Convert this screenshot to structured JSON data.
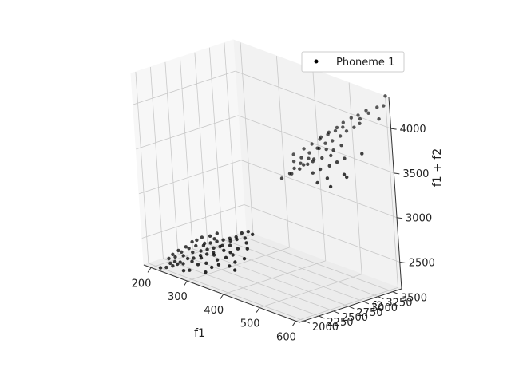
{
  "chart_data": {
    "type": "scatter3d",
    "title": "",
    "legend": {
      "placement": "top-right",
      "entries": [
        "Phoneme 1"
      ]
    },
    "axes": {
      "x": {
        "label": "f1",
        "lim": [
          180,
          610
        ],
        "ticks": [
          200,
          300,
          400,
          500,
          600
        ]
      },
      "y": {
        "label": "f2",
        "lim": [
          1920,
          3650
        ],
        "ticks": [
          2000,
          2250,
          2500,
          2750,
          3000,
          3250,
          3500
        ]
      },
      "z": {
        "label": "f1 + f2",
        "lim": [
          2200,
          4350
        ],
        "ticks": [
          2500,
          3000,
          3500,
          4000
        ]
      }
    },
    "grid": true,
    "series": [
      {
        "name": "Phoneme 1",
        "color": "#000000",
        "points": [
          [
            230,
            2000,
            2230
          ],
          [
            245,
            2020,
            2265
          ],
          [
            260,
            2060,
            2320
          ],
          [
            275,
            2100,
            2375
          ],
          [
            290,
            2110,
            2400
          ],
          [
            305,
            2140,
            2445
          ],
          [
            320,
            2160,
            2480
          ],
          [
            335,
            2180,
            2515
          ],
          [
            250,
            2150,
            2400
          ],
          [
            265,
            2190,
            2455
          ],
          [
            280,
            2220,
            2500
          ],
          [
            300,
            2230,
            2530
          ],
          [
            315,
            2260,
            2575
          ],
          [
            330,
            2280,
            2610
          ],
          [
            345,
            2300,
            2645
          ],
          [
            360,
            2320,
            2680
          ],
          [
            375,
            2340,
            2715
          ],
          [
            385,
            2380,
            2765
          ],
          [
            400,
            2400,
            2800
          ],
          [
            360,
            2210,
            2570
          ],
          [
            340,
            2160,
            2500
          ],
          [
            310,
            2120,
            2430
          ],
          [
            290,
            2080,
            2370
          ],
          [
            270,
            2050,
            2320
          ],
          [
            255,
            2040,
            2295
          ],
          [
            240,
            2100,
            2340
          ],
          [
            225,
            2080,
            2305
          ],
          [
            265,
            2250,
            2515
          ],
          [
            285,
            2300,
            2585
          ],
          [
            305,
            2320,
            2625
          ],
          [
            320,
            2350,
            2670
          ],
          [
            350,
            2250,
            2600
          ],
          [
            370,
            2260,
            2630
          ],
          [
            380,
            2200,
            2580
          ],
          [
            395,
            2240,
            2635
          ],
          [
            410,
            2300,
            2710
          ],
          [
            420,
            2250,
            2670
          ],
          [
            300,
            2180,
            2480
          ],
          [
            280,
            2160,
            2440
          ],
          [
            330,
            2220,
            2550
          ],
          [
            420,
            2900,
            3320
          ],
          [
            440,
            2950,
            3390
          ],
          [
            455,
            3000,
            3455
          ],
          [
            470,
            3050,
            3520
          ],
          [
            480,
            3100,
            3580
          ],
          [
            500,
            3120,
            3620
          ],
          [
            520,
            3150,
            3670
          ],
          [
            430,
            3060,
            3490
          ],
          [
            445,
            3100,
            3545
          ],
          [
            460,
            3150,
            3610
          ],
          [
            475,
            3200,
            3675
          ],
          [
            490,
            3250,
            3740
          ],
          [
            505,
            3280,
            3785
          ],
          [
            520,
            3330,
            3850
          ],
          [
            530,
            3380,
            3910
          ],
          [
            545,
            3420,
            3965
          ],
          [
            555,
            3460,
            4015
          ],
          [
            470,
            3300,
            3770
          ],
          [
            485,
            3350,
            3835
          ],
          [
            500,
            3400,
            3900
          ],
          [
            510,
            3450,
            3960
          ],
          [
            525,
            3500,
            4025
          ],
          [
            540,
            3530,
            4070
          ],
          [
            555,
            3580,
            4135
          ],
          [
            420,
            3120,
            3540
          ],
          [
            440,
            3180,
            3620
          ],
          [
            455,
            3230,
            3685
          ],
          [
            470,
            3280,
            3750
          ],
          [
            485,
            3330,
            3815
          ],
          [
            500,
            3370,
            3870
          ],
          [
            515,
            3410,
            3925
          ],
          [
            440,
            3000,
            3440
          ],
          [
            460,
            3040,
            3500
          ],
          [
            480,
            3080,
            3560
          ],
          [
            495,
            2980,
            3475
          ],
          [
            510,
            3020,
            3530
          ],
          [
            530,
            3060,
            3590
          ],
          [
            545,
            3100,
            3645
          ],
          [
            560,
            3140,
            3700
          ],
          [
            580,
            3000,
            3580
          ],
          [
            590,
            2980,
            3570
          ],
          [
            600,
            3200,
            3800
          ],
          [
            600,
            3520,
            4120
          ],
          [
            580,
            3620,
            4200
          ],
          [
            595,
            3640,
            4235
          ],
          [
            565,
            3560,
            4125
          ],
          [
            550,
            3500,
            4050
          ],
          [
            520,
            3200,
            3720
          ],
          [
            535,
            3250,
            3785
          ],
          [
            500,
            3200,
            3700
          ],
          [
            480,
            3200,
            3680
          ],
          [
            465,
            3100,
            3565
          ],
          [
            450,
            3050,
            3500
          ],
          [
            435,
            2950,
            3385
          ],
          [
            520,
            2900,
            3420
          ],
          [
            540,
            2950,
            3490
          ],
          [
            560,
            2880,
            3440
          ],
          [
            600,
            3650,
            4350
          ],
          [
            350,
            2050,
            2400
          ],
          [
            365,
            2080,
            2445
          ],
          [
            340,
            2000,
            2340
          ],
          [
            310,
            2060,
            2370
          ],
          [
            295,
            2000,
            2295
          ],
          [
            280,
            1990,
            2270
          ],
          [
            330,
            2080,
            2410
          ],
          [
            355,
            2120,
            2475
          ],
          [
            375,
            2150,
            2525
          ],
          [
            390,
            2180,
            2570
          ],
          [
            405,
            2120,
            2525
          ],
          [
            425,
            2160,
            2585
          ],
          [
            415,
            2050,
            2465
          ],
          [
            395,
            2080,
            2475
          ],
          [
            260,
            2120,
            2380
          ],
          [
            245,
            2060,
            2305
          ],
          [
            235,
            2040,
            2275
          ],
          [
            215,
            1990,
            2205
          ],
          [
            300,
            2250,
            2550
          ],
          [
            315,
            2200,
            2515
          ],
          [
            255,
            2200,
            2455
          ],
          [
            275,
            2270,
            2545
          ],
          [
            240,
            2160,
            2400
          ],
          [
            230,
            2120,
            2350
          ],
          [
            320,
            2300,
            2620
          ],
          [
            345,
            2240,
            2585
          ],
          [
            365,
            2300,
            2665
          ],
          [
            380,
            2320,
            2700
          ],
          [
            400,
            2340,
            2740
          ],
          [
            415,
            2380,
            2795
          ]
        ]
      }
    ]
  }
}
